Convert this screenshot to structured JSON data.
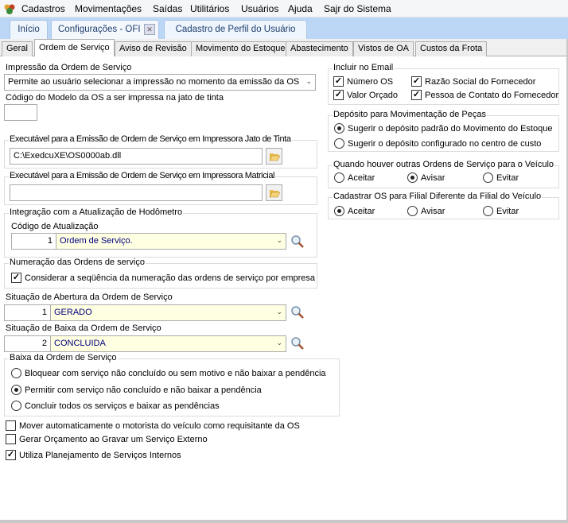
{
  "menu": {
    "items": [
      "Cadastros",
      "Movimentações",
      "Saídas",
      "Utilitários",
      "Usuários",
      "Ajuda",
      "Sajr do Sistema"
    ]
  },
  "app_tabs": [
    {
      "label": "Início"
    },
    {
      "label": "Configurações - OFI",
      "active": true,
      "closable": true
    },
    {
      "label": "Cadastro de Perfil do Usuário"
    }
  ],
  "tabs": [
    "Geral",
    "Ordem de Serviço",
    "Aviso de Revisão",
    "Movimento do Estoque",
    "Abastecimento",
    "Vistos de OA",
    "Custos da Frota"
  ],
  "active_tab": "Ordem de Serviço",
  "left": {
    "impressao_label": "Impressão da Ordem de Serviço",
    "impressao_value": "Permite ao usuário selecionar a impressão no momento da emissão da OS",
    "codigo_modelo_label": "Código do Modelo da OS a ser impressa na jato de tinta",
    "codigo_modelo_value": "",
    "exec_jato_legend": "Executável para a Emissão de Ordem de Serviço em Impressora Jato de Tinta",
    "exec_jato_value": "C:\\ExedcuXE\\OS0000ab.dll",
    "exec_matricial_legend": "Executável para a Emissão de Ordem de Serviço em Impressora Matricial",
    "exec_matricial_value": "",
    "hodometro_legend": "Integração com a Atualização de Hodômetro",
    "codigo_atualizacao_label": "Código de Atualização",
    "codigo_atualizacao_num": "1",
    "codigo_atualizacao_value": "Ordem de Serviço.",
    "numeracao_legend": "Numeração das Ordens de serviço",
    "numeracao_check": "Considerar a seqüência da numeração das ordens de serviço por empresa",
    "abertura_label": "Situação de Abertura da Ordem de Serviço",
    "abertura_num": "1",
    "abertura_value": "GERADO",
    "baixa_label": "Situação de Baixa da Ordem de Serviço",
    "baixa_num": "2",
    "baixa_value": "CONCLUIDA",
    "baixa_legend": "Baixa da Ordem de Serviço",
    "baixa_options": [
      "Bloquear com serviço não concluído ou sem motivo e não baixar a pendência",
      "Permitir com serviço não concluído e não baixar a pendência",
      "Concluir todos os serviços e baixar as pendências"
    ],
    "baixa_selected": 1,
    "checks": [
      {
        "label": "Mover automaticamente o motorista do veículo como requisitante da OS",
        "checked": false
      },
      {
        "label": "Gerar Orçamento ao Gravar um Serviço Externo",
        "checked": false
      },
      {
        "label": "Utiliza Planejamento de Serviços Internos",
        "checked": true
      }
    ]
  },
  "right": {
    "email_legend": "Incluir no Email",
    "email_checks": [
      {
        "label": "Número OS",
        "checked": true
      },
      {
        "label": "Razão Social do Fornecedor",
        "checked": true
      },
      {
        "label": "Valor Orçado",
        "checked": true
      },
      {
        "label": "Pessoa de Contato do Fornecedor",
        "checked": true
      }
    ],
    "deposito_legend": "Depósito para Movimentação de Peças",
    "deposito_options": [
      "Sugerir o depósito padrão do Movimento do Estoque",
      "Sugerir o depósito configurado no centro de custo"
    ],
    "deposito_selected": 0,
    "outras_legend": "Quando houver outras Ordens de Serviço para o Veículo",
    "outras_options": [
      "Aceitar",
      "Avisar",
      "Evitar"
    ],
    "outras_selected": 1,
    "filial_legend": "Cadastrar OS para Filial Diferente da Filial do Veículo",
    "filial_options": [
      "Aceitar",
      "Avisar",
      "Evitar"
    ],
    "filial_selected": 0
  }
}
